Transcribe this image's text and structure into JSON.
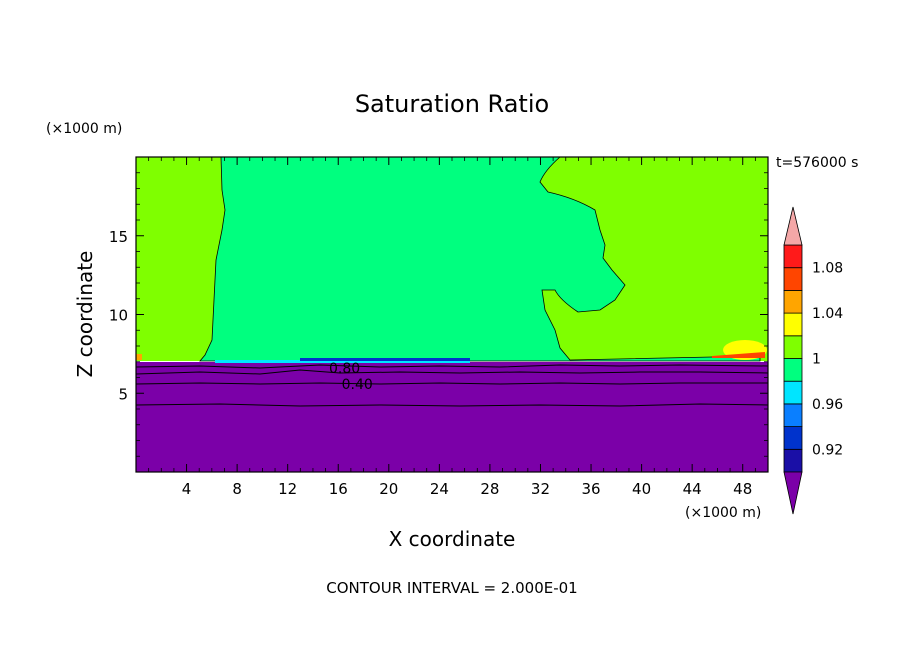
{
  "chart_data": {
    "type": "heatmap",
    "title": "Saturation Ratio",
    "xlabel": "X coordinate",
    "ylabel": "Z coordinate",
    "x_unit_label": "(×1000 m)",
    "y_unit_label": "(×1000 m)",
    "time_label": "t=576000 s",
    "footer": "CONTOUR INTERVAL = 2.000E-01",
    "xlim": [
      0,
      50
    ],
    "ylim": [
      0,
      20
    ],
    "x_ticks": [
      4,
      8,
      12,
      16,
      20,
      24,
      28,
      32,
      36,
      40,
      44,
      48
    ],
    "y_ticks": [
      5,
      10,
      15
    ],
    "contour_labels": [
      {
        "text": "0.80",
        "x": 16.5,
        "y": 6.6
      },
      {
        "text": "0.40",
        "x": 17.5,
        "y": 5.6
      }
    ],
    "colorbar": {
      "levels": [
        0.92,
        0.96,
        1,
        1.04,
        1.08
      ],
      "tick_labels": [
        "0.92",
        "0.96",
        "1",
        "1.04",
        "1.08"
      ],
      "colors": [
        "#7b00a8",
        "#1a0fa6",
        "#0033cc",
        "#0a7fff",
        "#00e5ff",
        "#00ff7f",
        "#7fff00",
        "#ffff00",
        "#ffa500",
        "#ff4500",
        "#ff1a1a",
        "#f4a7a7"
      ]
    },
    "regions": {
      "dry_layer_top_z": 7,
      "dry_color": "#7b00a8",
      "near_saturation_color": "#00ff7f",
      "supersaturation_color": "#7fff00"
    }
  }
}
